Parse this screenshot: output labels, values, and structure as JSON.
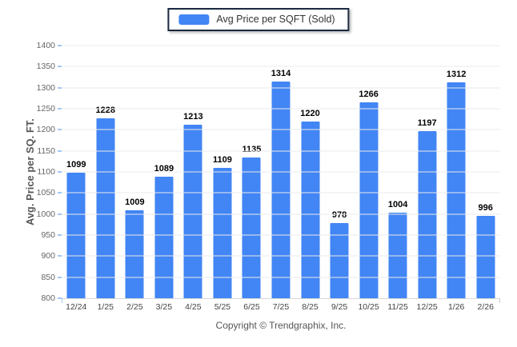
{
  "legend": {
    "label": "Avg Price per SQFT (Sold)"
  },
  "footer": {
    "copyright": "Copyright © Trendgraphix, Inc."
  },
  "chart_data": {
    "type": "bar",
    "title": "",
    "xlabel": "",
    "ylabel": "Avg. Price per SQ. FT.",
    "categories": [
      "12/24",
      "1/25",
      "2/25",
      "3/25",
      "4/25",
      "5/25",
      "6/25",
      "7/25",
      "8/25",
      "9/25",
      "10/25",
      "11/25",
      "12/25",
      "1/26",
      "2/26"
    ],
    "series": [
      {
        "name": "Avg Price per SQFT (Sold)",
        "values": [
          1099,
          1228,
          1009,
          1089,
          1213,
          1109,
          1135,
          1314,
          1220,
          978,
          1266,
          1004,
          1197,
          1312,
          996
        ]
      }
    ],
    "ylim": [
      800,
      1400
    ],
    "yticks": [
      800,
      850,
      900,
      950,
      1000,
      1050,
      1100,
      1150,
      1200,
      1250,
      1300,
      1350,
      1400
    ],
    "grid": true,
    "legend_position": "top-center",
    "value_labels": true
  },
  "colors": {
    "bar": "#4285f4",
    "gridline": "#ebebeb",
    "axis_line": "#d8d8d8",
    "axis_tick": "#a4c8f5",
    "value_label": "#000000",
    "x_label": "#444444",
    "y_label": "#666666",
    "y_title": "#555555",
    "legend_border": "#1a2940",
    "legend_text": "#333333",
    "copyright": "#555555"
  }
}
